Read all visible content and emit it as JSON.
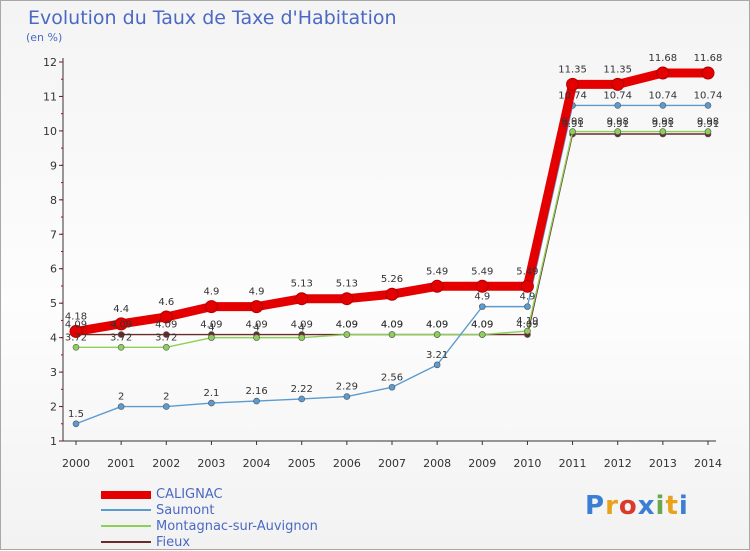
{
  "title": "Evolution du Taux de Taxe d'Habitation",
  "unit": "(en %)",
  "chart_data": {
    "type": "line",
    "x": [
      "2000",
      "2001",
      "2002",
      "2003",
      "2004",
      "2005",
      "2006",
      "2007",
      "2008",
      "2009",
      "2010",
      "2011",
      "2012",
      "2013",
      "2014"
    ],
    "ylim": [
      1,
      12
    ],
    "yticks": [
      1,
      2,
      3,
      4,
      5,
      6,
      7,
      8,
      9,
      10,
      11,
      12
    ],
    "grid": false,
    "legend": "bottom-left",
    "series": [
      {
        "name": "CALIGNAC",
        "color": "#e40000",
        "values": [
          4.18,
          4.4,
          4.6,
          4.9,
          4.9,
          5.13,
          5.13,
          5.26,
          5.49,
          5.49,
          5.49,
          11.35,
          11.35,
          11.68,
          11.68
        ],
        "labels": [
          "4.18",
          "4.4",
          "4.6",
          "4.9",
          "4.9",
          "5.13",
          "5.13",
          "5.26",
          "5.49",
          "5.49",
          "5.49",
          "11.35",
          "11.35",
          "11.68",
          "11.68"
        ]
      },
      {
        "name": "Saumont",
        "color": "#5b9bd0",
        "values": [
          1.5,
          2,
          2,
          2.1,
          2.16,
          2.22,
          2.29,
          2.56,
          3.21,
          4.9,
          4.9,
          10.74,
          10.74,
          10.74,
          10.74
        ],
        "labels": [
          "1.5",
          "2",
          "2",
          "2.1",
          "2.16",
          "2.22",
          "2.29",
          "2.56",
          "3.21",
          "4.9",
          "4.9",
          "10.74",
          "10.74",
          "10.74",
          "10.74"
        ]
      },
      {
        "name": "Montagnac-sur-Auvignon",
        "color": "#8cd05a",
        "values": [
          3.72,
          3.72,
          3.72,
          4,
          4,
          4,
          4.09,
          4.09,
          4.09,
          4.09,
          4.19,
          9.98,
          9.98,
          9.98,
          9.98
        ],
        "labels": [
          "3.72",
          "3.72",
          "3.72",
          "4",
          "4",
          "4",
          "4.09",
          "4.09",
          "4.09",
          "4.09",
          "4.19",
          "9.98",
          "9.98",
          "9.98",
          "9.98"
        ]
      },
      {
        "name": "Fieux",
        "color": "#6b2b2b",
        "values": [
          4.09,
          4.09,
          4.09,
          4.09,
          4.09,
          4.09,
          4.09,
          4.09,
          4.09,
          4.09,
          4.09,
          9.91,
          9.91,
          9.91,
          9.91
        ],
        "labels": [
          "4.09",
          "4.09",
          "4.09",
          "4.09",
          "4.09",
          "4.09",
          "4.09",
          "4.09",
          "4.09",
          "4.09",
          "4.09",
          "9.91",
          "9.91",
          "9.91",
          "9.91"
        ]
      }
    ]
  },
  "logo": {
    "letters": [
      "P",
      "r",
      "o",
      "x",
      "i",
      "t",
      "i"
    ],
    "colors": [
      "#3b7fd4",
      "#e8a21b",
      "#d93a2b",
      "#3b7fd4",
      "#6aa84f",
      "#e8a21b",
      "#3b7fd4"
    ]
  }
}
